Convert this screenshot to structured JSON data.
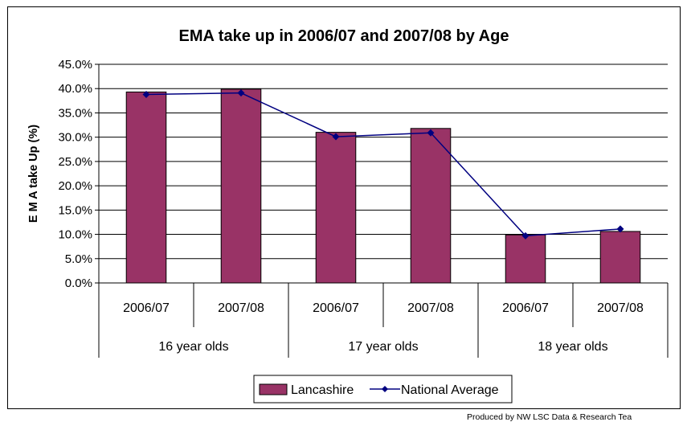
{
  "footer": "Produced by NW LSC Data & Research Tea",
  "chart_data": {
    "type": "bar",
    "title": "EMA take up in 2006/07 and 2007/08 by Age",
    "ylabel": "E M A take Up (%)",
    "xlabel": "",
    "ylim": [
      0,
      45
    ],
    "yticks": [
      "0.0%",
      "5.0%",
      "10.0%",
      "15.0%",
      "20.0%",
      "25.0%",
      "30.0%",
      "35.0%",
      "40.0%",
      "45.0%"
    ],
    "grid": true,
    "legend_position": "bottom",
    "categories": [
      "2006/07",
      "2007/08",
      "2006/07",
      "2007/08",
      "2006/07",
      "2007/08"
    ],
    "groups": [
      "16 year olds",
      "17 year olds",
      "18 year olds"
    ],
    "series": [
      {
        "name": "Lancashire",
        "kind": "bar",
        "color": "#993366",
        "values": [
          39.3,
          39.9,
          31.0,
          31.8,
          9.9,
          10.6
        ]
      },
      {
        "name": "National Average",
        "kind": "line",
        "color": "#000080",
        "values": [
          38.8,
          39.1,
          30.1,
          30.9,
          9.7,
          11.1
        ]
      }
    ]
  }
}
